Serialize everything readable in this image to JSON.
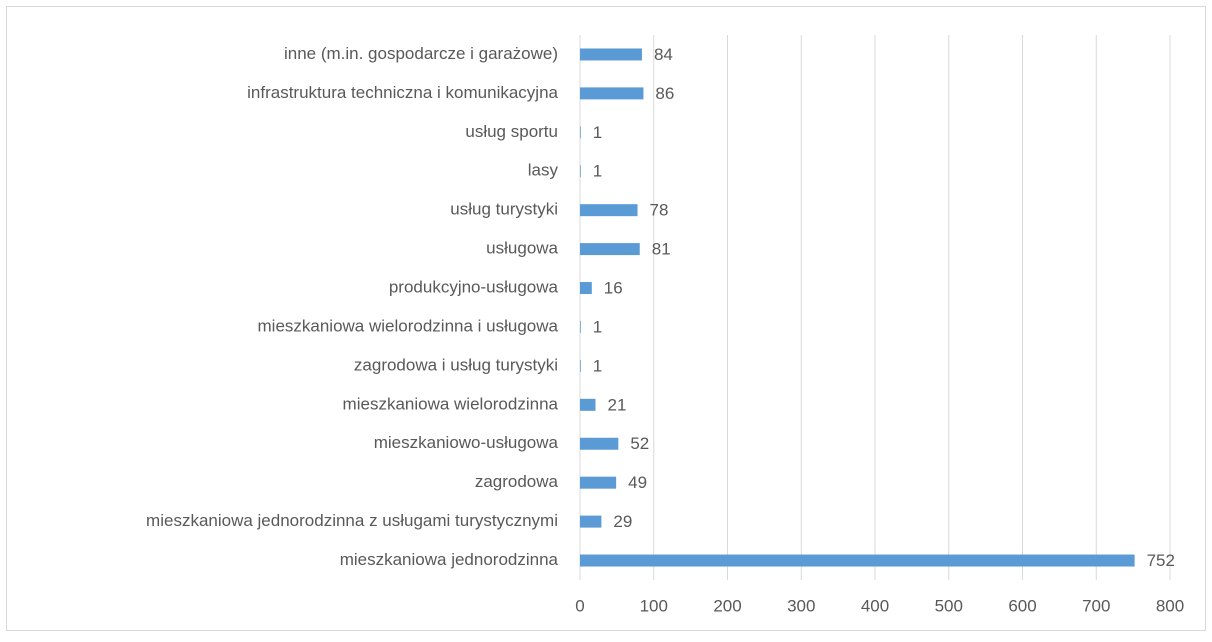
{
  "chart_data": {
    "type": "barh",
    "categories": [
      "inne (m.in. gospodarcze i garażowe)",
      "infrastruktura techniczna i komunikacyjna",
      "usług sportu",
      "lasy",
      "usług turystyki",
      "usługowa",
      "produkcyjno-usługowa",
      "mieszkaniowa wielorodzinna i usługowa",
      "zagrodowa i usług turystyki",
      "mieszkaniowa wielorodzinna",
      "mieszkaniowo-usługowa",
      "zagrodowa",
      "mieszkaniowa jednorodzinna z usługami turystycznymi",
      "mieszkaniowa jednorodzinna"
    ],
    "values": [
      84,
      86,
      1,
      1,
      78,
      81,
      16,
      1,
      1,
      21,
      52,
      49,
      29,
      752
    ],
    "color": "#5b9bd5",
    "xlim": [
      0,
      800
    ],
    "xticks": [
      0,
      100,
      200,
      300,
      400,
      500,
      600,
      700,
      800
    ],
    "grid": true
  }
}
